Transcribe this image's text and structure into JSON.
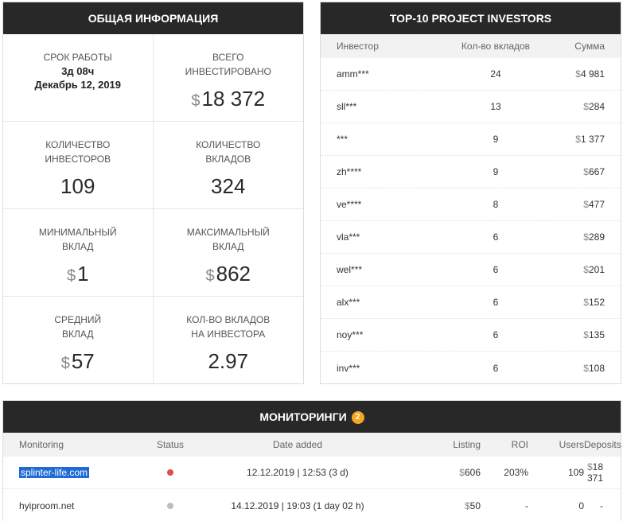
{
  "general": {
    "title": "Общая информация",
    "runtime": {
      "label": "Срок работы",
      "value": "3д 08ч",
      "date": "Декабрь 12, 2019"
    },
    "total_invested": {
      "label_line1": "Всего",
      "label_line2": "инвестировано",
      "currency": "$",
      "value": "18 372"
    },
    "investors_count": {
      "label_line1": "Количество",
      "label_line2": "инвесторов",
      "value": "109"
    },
    "deposits_count": {
      "label_line1": "Количество",
      "label_line2": "вкладов",
      "value": "324"
    },
    "min_deposit": {
      "label_line1": "Минимальный",
      "label_line2": "вклад",
      "currency": "$",
      "value": "1"
    },
    "max_deposit": {
      "label_line1": "Максимальный",
      "label_line2": "вклад",
      "currency": "$",
      "value": "862"
    },
    "avg_deposit": {
      "label_line1": "Средний",
      "label_line2": "вклад",
      "currency": "$",
      "value": "57"
    },
    "deposits_per_investor": {
      "label_line1": "Кол-во вкладов",
      "label_line2": "на инвестора",
      "value": "2.97"
    }
  },
  "investors": {
    "title": "TOP-10 PROJECT INVESTORS",
    "columns": [
      "Инвестор",
      "Кол-во вкладов",
      "Сумма"
    ],
    "rows": [
      {
        "name": "amm***",
        "count": "24",
        "sum": "4 981"
      },
      {
        "name": "sll***",
        "count": "13",
        "sum": "284"
      },
      {
        "name": "***",
        "count": "9",
        "sum": "1 377"
      },
      {
        "name": "zh****",
        "count": "9",
        "sum": "667"
      },
      {
        "name": "ve****",
        "count": "8",
        "sum": "477"
      },
      {
        "name": "vla***",
        "count": "6",
        "sum": "289"
      },
      {
        "name": "wel***",
        "count": "6",
        "sum": "201"
      },
      {
        "name": "alx***",
        "count": "6",
        "sum": "152"
      },
      {
        "name": "noy***",
        "count": "6",
        "sum": "135"
      },
      {
        "name": "inv***",
        "count": "6",
        "sum": "108"
      }
    ]
  },
  "monitoring": {
    "title": "Мониторинги",
    "badge": "2",
    "columns": [
      "Monitoring",
      "Status",
      "Date added",
      "Listing",
      "ROI",
      "Users",
      "Deposits"
    ],
    "rows": [
      {
        "site": "splinter-life.com",
        "status_color": "#e04b4b",
        "date": "12.12.2019 | 12:53 (3 d)",
        "listing": "606",
        "roi": "203%",
        "users": "109",
        "deposits": "18 371"
      },
      {
        "site": "hyiproom.net",
        "status_color": "#bdbdbd",
        "date": "14.12.2019 | 19:03 (1 day 02 h)",
        "listing": "50",
        "roi": "-",
        "users": "0",
        "deposits": "-"
      }
    ]
  },
  "currency_symbol": "$"
}
